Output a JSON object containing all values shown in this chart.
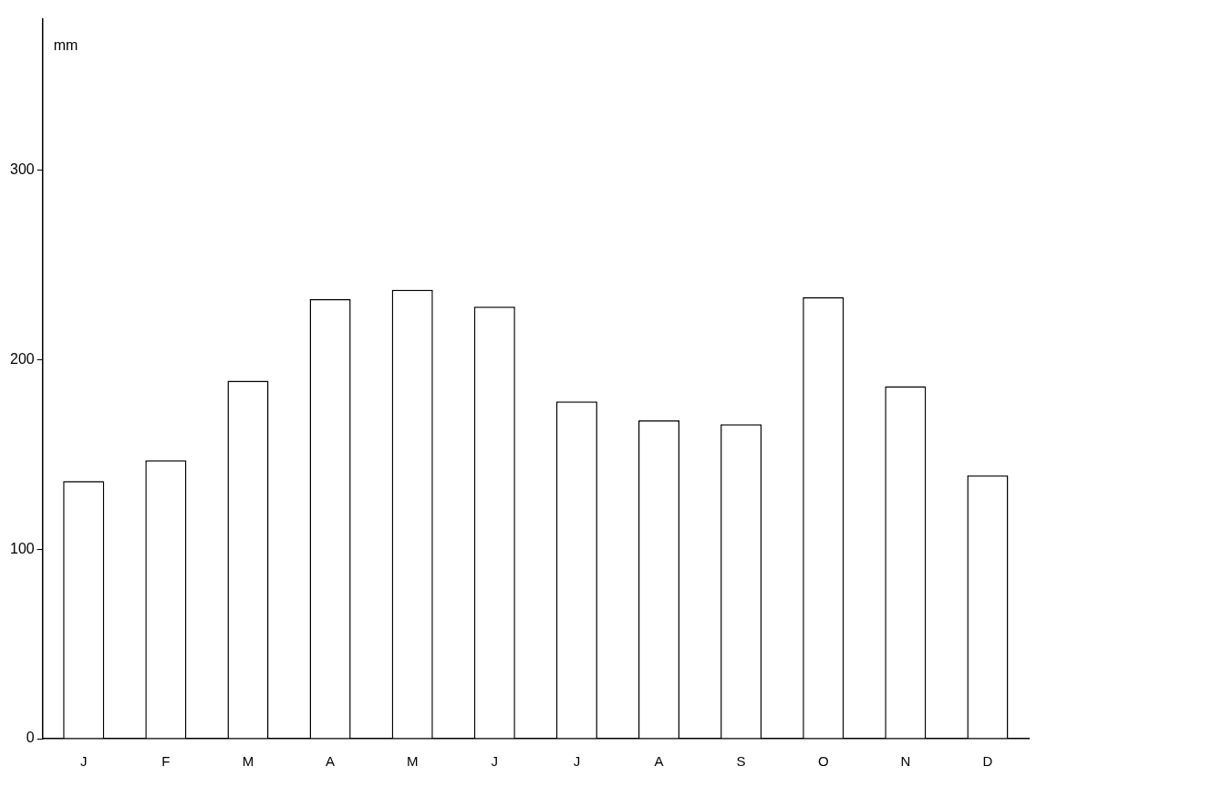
{
  "chart_data": {
    "type": "bar",
    "ylabel": "mm",
    "categories": [
      "J",
      "F",
      "M",
      "A",
      "M",
      "J",
      "J",
      "A",
      "S",
      "O",
      "N",
      "D"
    ],
    "values": [
      136,
      147,
      189,
      232,
      237,
      228,
      178,
      168,
      166,
      233,
      186,
      139
    ],
    "color": "#ffffff",
    "ylim": [
      0,
      380
    ],
    "yticks": [
      0,
      100,
      200,
      300
    ],
    "grid": false,
    "legend": false
  }
}
